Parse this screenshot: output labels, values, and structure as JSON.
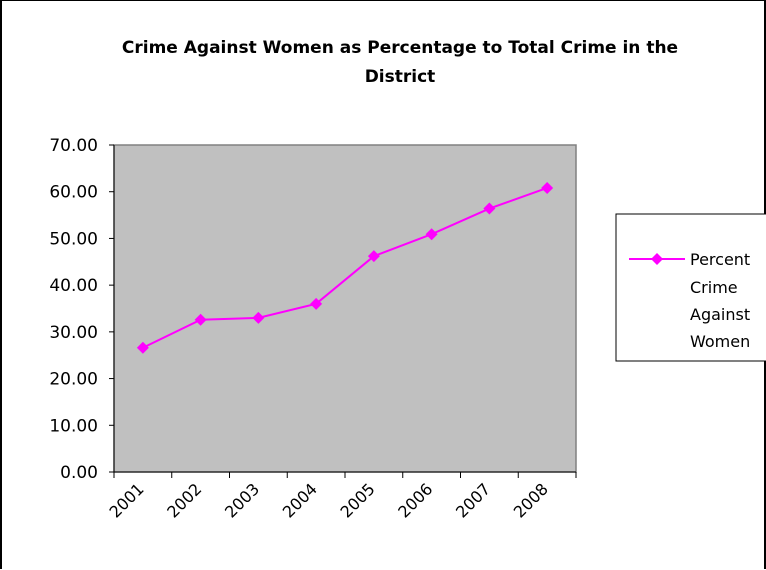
{
  "chart_data": {
    "type": "line",
    "title": "Crime Against Women as Percentage to Total Crime in the District",
    "title_lines": [
      "Crime Against Women as Percentage to Total Crime in the",
      "District"
    ],
    "categories": [
      "2001",
      "2002",
      "2003",
      "2004",
      "2005",
      "2006",
      "2007",
      "2008"
    ],
    "series": [
      {
        "name": "Percent Crime Against Women",
        "name_lines": [
          "Percent",
          "Crime",
          "Against",
          "Women"
        ],
        "values": [
          26.6,
          32.6,
          33.0,
          36.0,
          46.2,
          50.9,
          56.4,
          60.8
        ],
        "color": "#ff00ff",
        "marker": "diamond"
      }
    ],
    "ylim": [
      0,
      70
    ],
    "yticks": [
      "0.00",
      "10.00",
      "20.00",
      "30.00",
      "40.00",
      "50.00",
      "60.00",
      "70.00"
    ],
    "xlabel": "",
    "ylabel": "",
    "plot_background": "#c0c0c0",
    "grid": false,
    "legend_position": "right"
  }
}
